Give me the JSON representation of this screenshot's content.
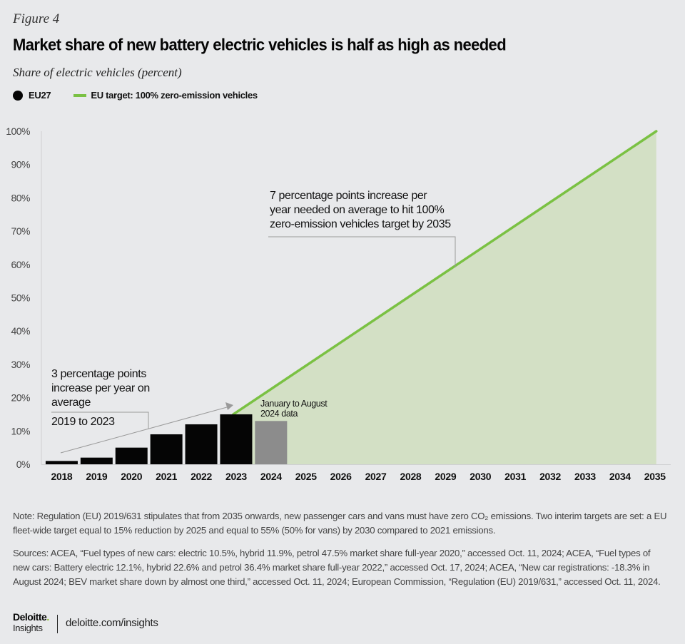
{
  "figure_label": "Figure 4",
  "title": "Market share of new battery electric vehicles is half as high as needed",
  "subtitle": "Share of electric vehicles (percent)",
  "legend": {
    "eu27": "EU27",
    "target": "EU target: 100% zero-emission vehicles"
  },
  "colors": {
    "eu27_bar": "#050505",
    "partial_bar": "#8c8c8c",
    "target_line": "#7ac143",
    "target_area": "#d3e0c5",
    "background": "#e8e9eb"
  },
  "chart_data": {
    "type": "bar",
    "title": "Market share of new battery electric vehicles is half as high as needed",
    "ylabel": "Share of electric vehicles (percent)",
    "xlabel": "",
    "ylim": [
      0,
      100
    ],
    "yticks": [
      "0%",
      "10%",
      "20%",
      "30%",
      "40%",
      "50%",
      "60%",
      "70%",
      "80%",
      "90%",
      "100%"
    ],
    "categories": [
      "2018",
      "2019",
      "2020",
      "2021",
      "2022",
      "2023",
      "2024",
      "2025",
      "2026",
      "2027",
      "2028",
      "2029",
      "2030",
      "2031",
      "2032",
      "2033",
      "2034",
      "2035"
    ],
    "series": [
      {
        "name": "EU27",
        "type": "bar",
        "values": [
          1,
          2,
          5,
          9,
          12,
          15,
          13,
          null,
          null,
          null,
          null,
          null,
          null,
          null,
          null,
          null,
          null,
          null
        ],
        "partial_index": 6
      },
      {
        "name": "EU target: 100% zero-emission vehicles",
        "type": "area-line",
        "points": [
          [
            2023,
            15
          ],
          [
            2035,
            100
          ]
        ]
      }
    ],
    "legend_position": "top-left",
    "grid": false,
    "annotations": {
      "left": [
        "3 percentage points",
        "increase per year on",
        "average"
      ],
      "left_period": "2019 to 2023",
      "right": [
        "7 percentage points increase per",
        "year needed on average to hit 100%",
        "zero-emission vehicles target by 2035"
      ],
      "partial_note": [
        "January to August",
        "2024 data"
      ]
    }
  },
  "note": "Note: Regulation (EU) 2019/631 stipulates that from 2035 onwards, new passenger cars and vans must have zero CO₂ emissions. Two interim targets are set: a EU fleet-wide target equal to 15% reduction by 2025 and equal to 55% (50% for vans) by 2030 compared to 2021 emissions.",
  "sources": "Sources: ACEA, “Fuel types of new cars: electric 10.5%, hybrid 11.9%, petrol 47.5% market share full-year 2020,” accessed Oct. 11, 2024;  ACEA, “Fuel types of new cars: Battery electric 12.1%, hybrid 22.6% and petrol 36.4% market share full-year 2022,” accessed Oct. 17, 2024; ACEA, “New car registrations: -18.3% in August 2024; BEV market share down by almost one third,” accessed Oct. 11, 2024; European Commission, “Regulation (EU) 2019/631,” accessed Oct. 11, 2024.",
  "footer": {
    "logo_main": "Deloitte",
    "logo_dot": ".",
    "logo_sub": "Insights",
    "site": "deloitte.com/insights"
  }
}
